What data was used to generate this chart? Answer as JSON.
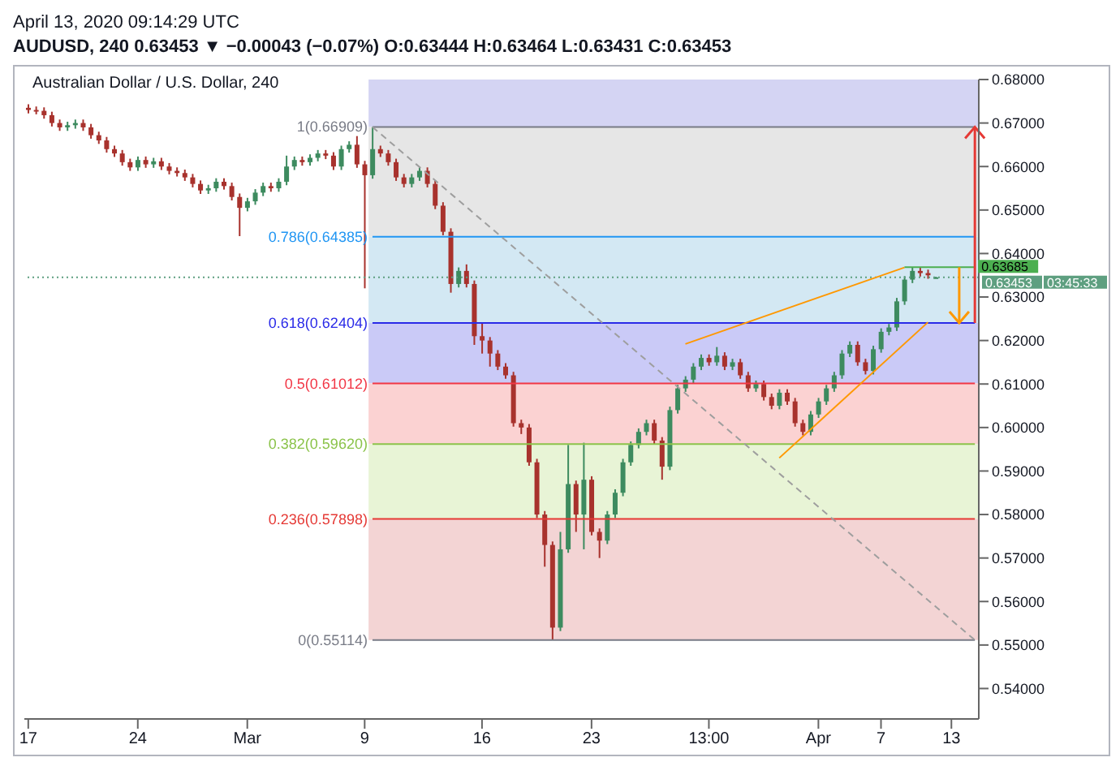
{
  "chart_data": {
    "type": "candlestick",
    "title": "Australian Dollar / U.S. Dollar, 240",
    "subtitle": "AUDUSD, 240 0.63453 ▼ −0.00043 (−0.07%) O:0.63444 H:0.63464 L:0.63431 C:0.63453",
    "annotations": [
      "April 13, 2020 09:14:29 UTC",
      "03:45:33"
    ],
    "categories": [
      "17",
      null,
      null,
      null,
      null,
      null,
      null,
      null,
      null,
      null,
      null,
      null,
      null,
      null,
      "24",
      null,
      null,
      null,
      null,
      null,
      null,
      null,
      null,
      null,
      null,
      null,
      null,
      null,
      "Mar",
      null,
      null,
      null,
      null,
      null,
      null,
      null,
      null,
      null,
      null,
      null,
      null,
      null,
      null,
      "9",
      null,
      null,
      null,
      null,
      null,
      null,
      null,
      null,
      null,
      null,
      null,
      null,
      null,
      null,
      "16",
      null,
      null,
      null,
      null,
      null,
      null,
      null,
      null,
      null,
      null,
      null,
      null,
      null,
      "23",
      null,
      null,
      null,
      null,
      null,
      null,
      null,
      null,
      null,
      null,
      null,
      null,
      null,
      null,
      "13:00",
      null,
      null,
      null,
      null,
      null,
      null,
      null,
      null,
      null,
      null,
      null,
      null,
      null,
      "Apr",
      null,
      null,
      null,
      null,
      null,
      null,
      null,
      "7",
      null,
      null,
      null,
      null,
      null,
      null,
      null,
      null,
      "13",
      null,
      null,
      null
    ],
    "ohlc": [
      [
        0.6735,
        0.6743,
        0.6722,
        0.673
      ],
      [
        0.673,
        0.6738,
        0.672,
        0.6728
      ],
      [
        0.6728,
        0.6736,
        0.671,
        0.6718
      ],
      [
        0.6718,
        0.6726,
        0.6692,
        0.67
      ],
      [
        0.67,
        0.6708,
        0.6682,
        0.669
      ],
      [
        0.669,
        0.6703,
        0.6682,
        0.6695
      ],
      [
        0.6695,
        0.6708,
        0.6687,
        0.67
      ],
      [
        0.67,
        0.6708,
        0.6682,
        0.669
      ],
      [
        0.669,
        0.6698,
        0.6664,
        0.6672
      ],
      [
        0.6672,
        0.668,
        0.6652,
        0.666
      ],
      [
        0.666,
        0.6668,
        0.6632,
        0.664
      ],
      [
        0.664,
        0.6648,
        0.6622,
        0.663
      ],
      [
        0.663,
        0.6638,
        0.6602,
        0.661
      ],
      [
        0.661,
        0.6618,
        0.659,
        0.6598
      ],
      [
        0.6598,
        0.6623,
        0.659,
        0.6615
      ],
      [
        0.6615,
        0.6623,
        0.6597,
        0.6605
      ],
      [
        0.6605,
        0.662,
        0.6597,
        0.6612
      ],
      [
        0.6612,
        0.662,
        0.6592,
        0.66
      ],
      [
        0.66,
        0.6608,
        0.6582,
        0.659
      ],
      [
        0.659,
        0.6598,
        0.6577,
        0.6585
      ],
      [
        0.6585,
        0.6593,
        0.6567,
        0.6575
      ],
      [
        0.6575,
        0.6583,
        0.6552,
        0.656
      ],
      [
        0.656,
        0.6568,
        0.6537,
        0.6545
      ],
      [
        0.6545,
        0.6558,
        0.6537,
        0.655
      ],
      [
        0.655,
        0.6573,
        0.6542,
        0.6565
      ],
      [
        0.6565,
        0.6573,
        0.6547,
        0.6555
      ],
      [
        0.6555,
        0.6563,
        0.6522,
        0.653
      ],
      [
        0.653,
        0.6538,
        0.644,
        0.6505
      ],
      [
        0.6505,
        0.6528,
        0.6497,
        0.652
      ],
      [
        0.652,
        0.6548,
        0.6512,
        0.654
      ],
      [
        0.654,
        0.6563,
        0.6532,
        0.6555
      ],
      [
        0.6555,
        0.6563,
        0.6542,
        0.655
      ],
      [
        0.655,
        0.6573,
        0.6542,
        0.6565
      ],
      [
        0.6565,
        0.6625,
        0.6557,
        0.66
      ],
      [
        0.66,
        0.6623,
        0.6592,
        0.6615
      ],
      [
        0.6615,
        0.6623,
        0.6602,
        0.661
      ],
      [
        0.661,
        0.6628,
        0.6602,
        0.662
      ],
      [
        0.662,
        0.6638,
        0.6612,
        0.663
      ],
      [
        0.663,
        0.6638,
        0.6617,
        0.6625
      ],
      [
        0.6625,
        0.6633,
        0.6592,
        0.66
      ],
      [
        0.66,
        0.6648,
        0.6592,
        0.664
      ],
      [
        0.664,
        0.6658,
        0.6632,
        0.665
      ],
      [
        0.665,
        0.667,
        0.6597,
        0.6605
      ],
      [
        0.6605,
        0.6613,
        0.632,
        0.658
      ],
      [
        0.658,
        0.66909,
        0.6572,
        0.664
      ],
      [
        0.664,
        0.6648,
        0.6622,
        0.663
      ],
      [
        0.663,
        0.6638,
        0.6602,
        0.661
      ],
      [
        0.661,
        0.6618,
        0.6567,
        0.6575
      ],
      [
        0.6575,
        0.6583,
        0.6552,
        0.656
      ],
      [
        0.656,
        0.6583,
        0.6552,
        0.6575
      ],
      [
        0.6575,
        0.6598,
        0.6567,
        0.659
      ],
      [
        0.659,
        0.6598,
        0.6552,
        0.656
      ],
      [
        0.656,
        0.6568,
        0.6502,
        0.651
      ],
      [
        0.651,
        0.6518,
        0.6442,
        0.645
      ],
      [
        0.645,
        0.6458,
        0.631,
        0.633
      ],
      [
        0.633,
        0.6368,
        0.6322,
        0.636
      ],
      [
        0.636,
        0.6375,
        0.6322,
        0.633
      ],
      [
        0.633,
        0.6338,
        0.619,
        0.621
      ],
      [
        0.621,
        0.624,
        0.617,
        0.62
      ],
      [
        0.62,
        0.6208,
        0.614,
        0.617
      ],
      [
        0.617,
        0.6178,
        0.6132,
        0.614
      ],
      [
        0.614,
        0.6148,
        0.6112,
        0.612
      ],
      [
        0.612,
        0.6128,
        0.6002,
        0.601
      ],
      [
        0.601,
        0.6018,
        0.5985,
        0.6
      ],
      [
        0.6,
        0.6008,
        0.5912,
        0.592
      ],
      [
        0.592,
        0.5928,
        0.5792,
        0.58
      ],
      [
        0.58,
        0.5808,
        0.568,
        0.573
      ],
      [
        0.573,
        0.5738,
        0.55114,
        0.554
      ],
      [
        0.554,
        0.576,
        0.5532,
        0.572
      ],
      [
        0.572,
        0.596,
        0.5712,
        0.587
      ],
      [
        0.587,
        0.5878,
        0.576,
        0.58
      ],
      [
        0.58,
        0.5965,
        0.572,
        0.588
      ],
      [
        0.588,
        0.5888,
        0.5752,
        0.576
      ],
      [
        0.576,
        0.5768,
        0.57,
        0.574
      ],
      [
        0.574,
        0.5808,
        0.5732,
        0.58
      ],
      [
        0.58,
        0.5858,
        0.5792,
        0.585
      ],
      [
        0.585,
        0.5928,
        0.5842,
        0.592
      ],
      [
        0.592,
        0.5968,
        0.5912,
        0.596
      ],
      [
        0.596,
        0.5998,
        0.5952,
        0.599
      ],
      [
        0.599,
        0.6018,
        0.5982,
        0.601
      ],
      [
        0.601,
        0.6018,
        0.5962,
        0.597
      ],
      [
        0.597,
        0.5978,
        0.588,
        0.591
      ],
      [
        0.591,
        0.6048,
        0.5902,
        0.604
      ],
      [
        0.604,
        0.6098,
        0.6032,
        0.609
      ],
      [
        0.609,
        0.6118,
        0.6082,
        0.611
      ],
      [
        0.611,
        0.6148,
        0.6102,
        0.614
      ],
      [
        0.614,
        0.6168,
        0.6132,
        0.616
      ],
      [
        0.616,
        0.6168,
        0.6142,
        0.615
      ],
      [
        0.615,
        0.6185,
        0.6142,
        0.6165
      ],
      [
        0.6165,
        0.6173,
        0.6132,
        0.614
      ],
      [
        0.614,
        0.6158,
        0.6132,
        0.615
      ],
      [
        0.615,
        0.6158,
        0.6112,
        0.612
      ],
      [
        0.612,
        0.6128,
        0.6082,
        0.609
      ],
      [
        0.609,
        0.6108,
        0.6082,
        0.61
      ],
      [
        0.61,
        0.6108,
        0.6062,
        0.607
      ],
      [
        0.607,
        0.6078,
        0.6042,
        0.605
      ],
      [
        0.605,
        0.6088,
        0.6042,
        0.608
      ],
      [
        0.608,
        0.6088,
        0.6052,
        0.606
      ],
      [
        0.606,
        0.6068,
        0.6002,
        0.601
      ],
      [
        0.601,
        0.6018,
        0.5982,
        0.599
      ],
      [
        0.599,
        0.6038,
        0.5982,
        0.603
      ],
      [
        0.603,
        0.6068,
        0.6022,
        0.606
      ],
      [
        0.606,
        0.6098,
        0.6052,
        0.609
      ],
      [
        0.609,
        0.6128,
        0.6082,
        0.612
      ],
      [
        0.612,
        0.6178,
        0.6112,
        0.617
      ],
      [
        0.617,
        0.6198,
        0.6162,
        0.619
      ],
      [
        0.619,
        0.6198,
        0.6142,
        0.615
      ],
      [
        0.615,
        0.6158,
        0.6122,
        0.613
      ],
      [
        0.613,
        0.6188,
        0.6122,
        0.618
      ],
      [
        0.618,
        0.6228,
        0.6172,
        0.622
      ],
      [
        0.622,
        0.6238,
        0.6212,
        0.623
      ],
      [
        0.623,
        0.6298,
        0.6222,
        0.629
      ],
      [
        0.629,
        0.6348,
        0.6282,
        0.634
      ],
      [
        0.634,
        0.63685,
        0.6332,
        0.636
      ],
      [
        0.636,
        0.6368,
        0.6347,
        0.6355
      ],
      [
        0.6355,
        0.6363,
        0.6342,
        0.635
      ],
      [
        0.63444,
        0.63464,
        0.63431,
        0.63453
      ],
      null,
      null,
      null,
      null,
      null
    ],
    "series": [
      {
        "type": "line",
        "color": "#9e9e9e",
        "line_style": "dashed",
        "values": [
          null,
          null,
          null,
          null,
          null,
          null,
          null,
          null,
          null,
          null,
          null,
          null,
          null,
          null,
          null,
          null,
          null,
          null,
          null,
          null,
          null,
          null,
          null,
          null,
          null,
          null,
          null,
          null,
          null,
          null,
          null,
          null,
          null,
          null,
          null,
          null,
          null,
          null,
          null,
          null,
          null,
          null,
          null,
          null,
          0.66909,
          null,
          null,
          null,
          null,
          null,
          null,
          null,
          null,
          null,
          null,
          null,
          null,
          null,
          null,
          null,
          null,
          null,
          null,
          null,
          null,
          null,
          null,
          null,
          null,
          null,
          null,
          null,
          null,
          null,
          null,
          null,
          null,
          null,
          null,
          null,
          null,
          null,
          null,
          null,
          null,
          null,
          null,
          null,
          null,
          null,
          null,
          null,
          null,
          null,
          null,
          null,
          null,
          null,
          null,
          null,
          null,
          null,
          null,
          null,
          null,
          null,
          null,
          null,
          null,
          null,
          null,
          null,
          null,
          null,
          null,
          null,
          null,
          null,
          null,
          null,
          null,
          0.55114
        ]
      },
      {
        "type": "line",
        "color": "#ff9800",
        "line_style": "solid",
        "values": [
          null,
          null,
          null,
          null,
          null,
          null,
          null,
          null,
          null,
          null,
          null,
          null,
          null,
          null,
          null,
          null,
          null,
          null,
          null,
          null,
          null,
          null,
          null,
          null,
          null,
          null,
          null,
          null,
          null,
          null,
          null,
          null,
          null,
          null,
          null,
          null,
          null,
          null,
          null,
          null,
          null,
          null,
          null,
          null,
          null,
          null,
          null,
          null,
          null,
          null,
          null,
          null,
          null,
          null,
          null,
          null,
          null,
          null,
          null,
          null,
          null,
          null,
          null,
          null,
          null,
          null,
          null,
          null,
          null,
          null,
          null,
          null,
          null,
          null,
          null,
          null,
          null,
          null,
          null,
          null,
          null,
          null,
          null,
          null,
          0.6192,
          null,
          null,
          null,
          null,
          null,
          null,
          null,
          null,
          null,
          null,
          null,
          null,
          null,
          null,
          null,
          null,
          null,
          null,
          null,
          null,
          null,
          null,
          null,
          null,
          null,
          null,
          null,
          0.6368,
          null,
          null,
          null,
          null,
          null,
          null,
          null,
          null,
          null
        ]
      },
      {
        "type": "line",
        "color": "#ff9800",
        "line_style": "solid",
        "values": [
          null,
          null,
          null,
          null,
          null,
          null,
          null,
          null,
          null,
          null,
          null,
          null,
          null,
          null,
          null,
          null,
          null,
          null,
          null,
          null,
          null,
          null,
          null,
          null,
          null,
          null,
          null,
          null,
          null,
          null,
          null,
          null,
          null,
          null,
          null,
          null,
          null,
          null,
          null,
          null,
          null,
          null,
          null,
          null,
          null,
          null,
          null,
          null,
          null,
          null,
          null,
          null,
          null,
          null,
          null,
          null,
          null,
          null,
          null,
          null,
          null,
          null,
          null,
          null,
          null,
          null,
          null,
          null,
          null,
          null,
          null,
          null,
          null,
          null,
          null,
          null,
          null,
          null,
          null,
          null,
          null,
          null,
          null,
          null,
          null,
          null,
          null,
          null,
          null,
          null,
          null,
          null,
          null,
          null,
          null,
          null,
          0.593,
          null,
          null,
          null,
          null,
          null,
          null,
          null,
          null,
          null,
          null,
          null,
          null,
          null,
          null,
          null,
          null,
          null,
          null,
          0.6242,
          null,
          null,
          null,
          null,
          null,
          null
        ]
      },
      {
        "type": "line",
        "color": "#4caf50",
        "line_style": "solid",
        "values": [
          null,
          null,
          null,
          null,
          null,
          null,
          null,
          null,
          null,
          null,
          null,
          null,
          null,
          null,
          null,
          null,
          null,
          null,
          null,
          null,
          null,
          null,
          null,
          null,
          null,
          null,
          null,
          null,
          null,
          null,
          null,
          null,
          null,
          null,
          null,
          null,
          null,
          null,
          null,
          null,
          null,
          null,
          null,
          null,
          null,
          null,
          null,
          null,
          null,
          null,
          null,
          null,
          null,
          null,
          null,
          null,
          null,
          null,
          null,
          null,
          null,
          null,
          null,
          null,
          null,
          null,
          null,
          null,
          null,
          null,
          null,
          null,
          null,
          null,
          null,
          null,
          null,
          null,
          null,
          null,
          null,
          null,
          null,
          null,
          null,
          null,
          null,
          null,
          null,
          null,
          null,
          null,
          null,
          null,
          null,
          null,
          null,
          null,
          null,
          null,
          null,
          null,
          null,
          null,
          null,
          null,
          null,
          null,
          null,
          null,
          null,
          null,
          0.63685,
          null,
          null,
          null,
          null,
          null,
          null,
          null,
          null,
          0.63685
        ],
        "value_labels": [
          null,
          null,
          null,
          null,
          null,
          null,
          null,
          null,
          null,
          null,
          null,
          null,
          null,
          null,
          null,
          null,
          null,
          null,
          null,
          null,
          null,
          null,
          null,
          null,
          null,
          null,
          null,
          null,
          null,
          null,
          null,
          null,
          null,
          null,
          null,
          null,
          null,
          null,
          null,
          null,
          null,
          null,
          null,
          null,
          null,
          null,
          null,
          null,
          null,
          null,
          null,
          null,
          null,
          null,
          null,
          null,
          null,
          null,
          null,
          null,
          null,
          null,
          null,
          null,
          null,
          null,
          null,
          null,
          null,
          null,
          null,
          null,
          null,
          null,
          null,
          null,
          null,
          null,
          null,
          null,
          null,
          null,
          null,
          null,
          null,
          null,
          null,
          null,
          null,
          null,
          null,
          null,
          null,
          null,
          null,
          null,
          null,
          null,
          null,
          null,
          null,
          null,
          null,
          null,
          null,
          null,
          null,
          null,
          null,
          null,
          null,
          null,
          null,
          null,
          null,
          null,
          null,
          null,
          null,
          null,
          null,
          "0.63685"
        ]
      }
    ],
    "ref_lines": [
      {
        "axis": "y",
        "value": 0.66909,
        "label": "1(0.66909)",
        "color": "#787b86"
      },
      {
        "axis": "y",
        "value": 0.64385,
        "label": "0.786(0.64385)",
        "color": "#2196f3"
      },
      {
        "axis": "y",
        "value": 0.62404,
        "label": "0.618(0.62404)",
        "color": "#2a2ae8"
      },
      {
        "axis": "y",
        "value": 0.61012,
        "label": "0.5(0.61012)",
        "color": "#f23645"
      },
      {
        "axis": "y",
        "value": 0.5962,
        "label": "0.382(0.59620)",
        "color": "#8bc34a"
      },
      {
        "axis": "y",
        "value": 0.57898,
        "label": "0.236(0.57898)",
        "color": "#e53935"
      },
      {
        "axis": "y",
        "value": 0.55114,
        "label": "0(0.55114)",
        "color": "#787b86"
      },
      {
        "axis": "y",
        "value": 0.63453,
        "label": "0.63453",
        "color": "#5e9f80",
        "line_style": "dotted"
      }
    ],
    "bands": [
      {
        "axis": "y",
        "from": 0.66909,
        "to": 0.68,
        "color": "#d4d4f3"
      },
      {
        "axis": "y",
        "from": 0.64385,
        "to": 0.66909,
        "color": "#e6e6e6"
      },
      {
        "axis": "y",
        "from": 0.62404,
        "to": 0.64385,
        "color": "#d3e8f3"
      },
      {
        "axis": "y",
        "from": 0.61012,
        "to": 0.62404,
        "color": "#cacaf7"
      },
      {
        "axis": "y",
        "from": 0.5962,
        "to": 0.61012,
        "color": "#fbd2d2"
      },
      {
        "axis": "y",
        "from": 0.57898,
        "to": 0.5962,
        "color": "#e8f4d6"
      },
      {
        "axis": "y",
        "from": 0.55114,
        "to": 0.57898,
        "color": "#f3d4d4"
      }
    ],
    "ylim": [
      0.533,
      0.68
    ],
    "yticks": [
      {
        "value": 0.54,
        "label": "0.54000"
      },
      {
        "value": 0.55,
        "label": "0.55000"
      },
      {
        "value": 0.56,
        "label": "0.56000"
      },
      {
        "value": 0.57,
        "label": "0.57000"
      },
      {
        "value": 0.58,
        "label": "0.58000"
      },
      {
        "value": 0.59,
        "label": "0.59000"
      },
      {
        "value": 0.6,
        "label": "0.60000"
      },
      {
        "value": 0.61,
        "label": "0.61000"
      },
      {
        "value": 0.62,
        "label": "0.62000"
      },
      {
        "value": 0.63,
        "label": "0.63000"
      },
      {
        "value": 0.64,
        "label": "0.64000"
      },
      {
        "value": 0.65,
        "label": "0.65000"
      },
      {
        "value": 0.66,
        "label": "0.66000"
      },
      {
        "value": 0.67,
        "label": "0.67000"
      },
      {
        "value": 0.68,
        "label": "0.68000"
      }
    ],
    "grid": false
  }
}
